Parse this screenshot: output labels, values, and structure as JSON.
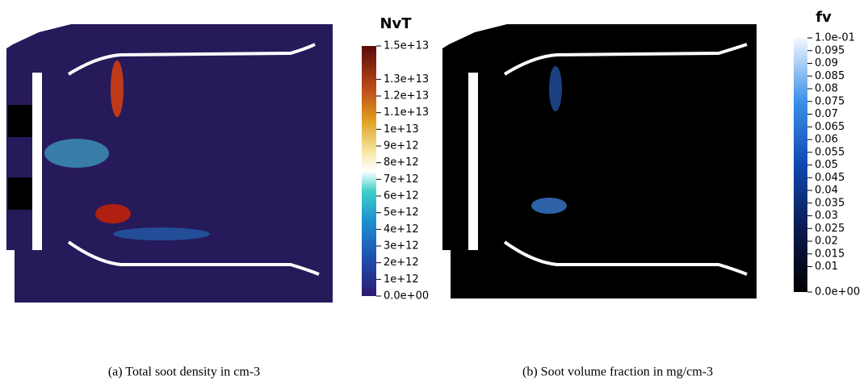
{
  "panels": [
    {
      "colorbar": {
        "title": "NvT",
        "ticks": [
          {
            "value": 15000000000000,
            "label": "1.5e+13"
          },
          {
            "value": 13000000000000,
            "label": "1.3e+13"
          },
          {
            "value": 12000000000000,
            "label": "1.2e+13"
          },
          {
            "value": 11000000000000,
            "label": "1.1e+13"
          },
          {
            "value": 10000000000000,
            "label": "1e+13"
          },
          {
            "value": 9000000000000,
            "label": "9e+12"
          },
          {
            "value": 8000000000000,
            "label": "8e+12"
          },
          {
            "value": 7000000000000,
            "label": "7e+12"
          },
          {
            "value": 6000000000000,
            "label": "6e+12"
          },
          {
            "value": 5000000000000,
            "label": "5e+12"
          },
          {
            "value": 4000000000000,
            "label": "4e+12"
          },
          {
            "value": 3000000000000,
            "label": "3e+12"
          },
          {
            "value": 2000000000000,
            "label": "2e+12"
          },
          {
            "value": 1000000000000,
            "label": "1e+12"
          },
          {
            "value": 0,
            "label": "0.0e+00"
          }
        ]
      },
      "caption": "(a)  Total soot density in cm-3"
    },
    {
      "colorbar": {
        "title": "fv",
        "ticks": [
          {
            "value": 0.1,
            "label": "1.0e-01"
          },
          0.095,
          0.09,
          0.085,
          0.08,
          0.075,
          0.07,
          0.065,
          0.06,
          0.055,
          0.05,
          0.045,
          0.04,
          0.035,
          0.03,
          0.025,
          0.02,
          0.015,
          0.01,
          {
            "value": 0,
            "label": "0.0e+00"
          }
        ]
      },
      "caption": "(b)  Soot volume fraction in mg/cm-3"
    }
  ]
}
